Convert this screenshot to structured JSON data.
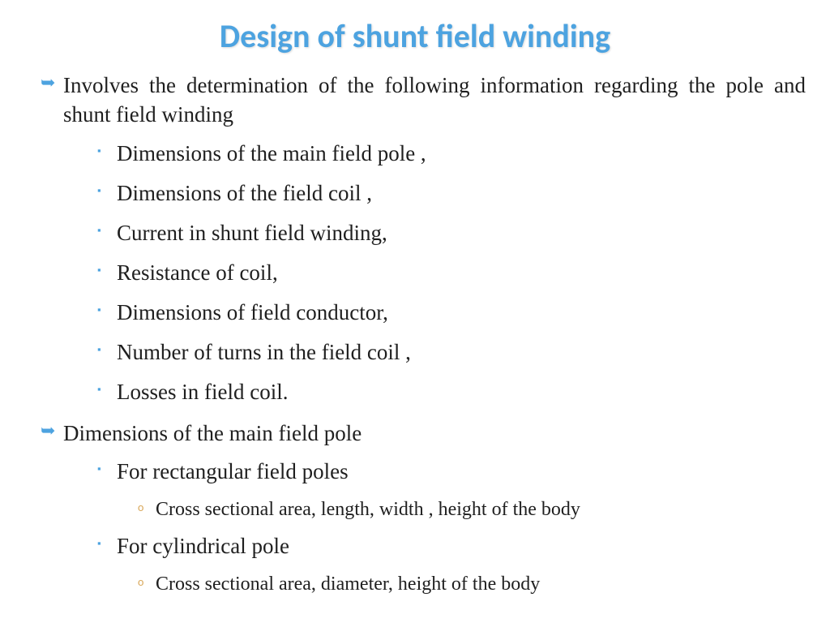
{
  "colors": {
    "title": "#4da3e0",
    "body_text": "#1f1f1f",
    "l1_bullet": "#4da3e0",
    "l2_bullet": "#4da3e0",
    "l3_bullet": "#d9a85b",
    "background": "#ffffff"
  },
  "typography": {
    "title_font": "Calibri",
    "title_size_pt": 30,
    "title_weight": "bold",
    "body_font": "Times New Roman",
    "l1_size_pt": 20,
    "l2_size_pt": 20,
    "l3_size_pt": 18
  },
  "title": "Design of shunt field winding",
  "items": {
    "l1_a": "Involves  the determination of the following information regarding the pole  and shunt field winding",
    "l2_a": "Dimensions of the main field pole ,",
    "l2_b": "Dimensions of the field coil ,",
    "l2_c": "Current in shunt field winding,",
    "l2_d": "Resistance of coil,",
    "l2_e": "Dimensions of field conductor,",
    "l2_f": "Number of turns in the field coil ,",
    "l2_g": "Losses in field coil.",
    "l1_b": "Dimensions  of the main field pole",
    "l2_h": "For rectangular field poles",
    "l3_a": "Cross sectional area, length, width , height of the body",
    "l2_i": "For cylindrical pole",
    "l3_b": "Cross sectional area, diameter, height of the body"
  },
  "bullets": {
    "arrow": "➥",
    "square": "▪",
    "circle": "o"
  }
}
